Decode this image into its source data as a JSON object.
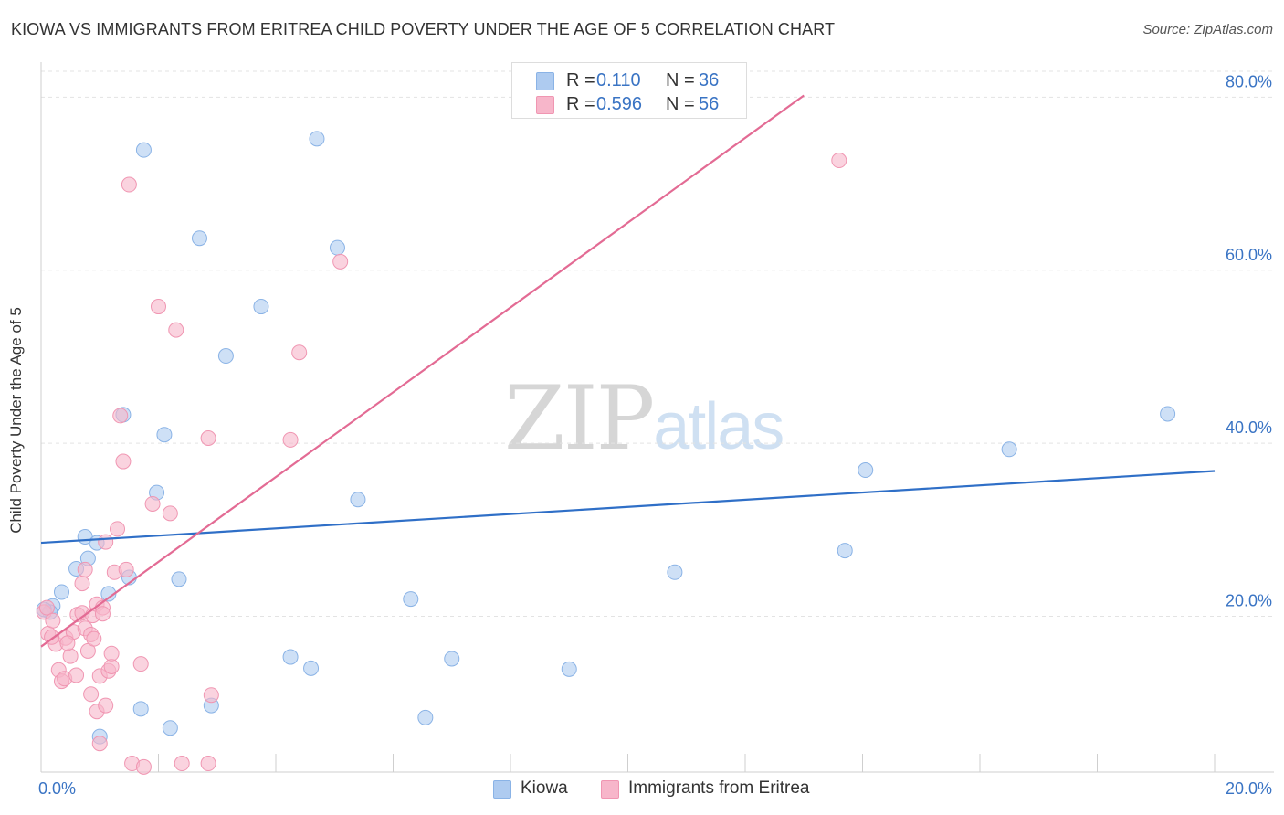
{
  "header": {
    "title": "KIOWA VS IMMIGRANTS FROM ERITREA CHILD POVERTY UNDER THE AGE OF 5 CORRELATION CHART",
    "source": "Source: ZipAtlas.com"
  },
  "watermark": {
    "zip": "ZIP",
    "atlas": "atlas"
  },
  "legend_top": {
    "rows": [
      {
        "r_label": "R = ",
        "r_value": "0.110",
        "n_label": "N = ",
        "n_value": "36",
        "color": "#aecbf0"
      },
      {
        "r_label": "R = ",
        "r_value": "0.596",
        "n_label": "N = ",
        "n_value": "56",
        "color": "#f7b6ca"
      }
    ]
  },
  "legend_bottom": {
    "items": [
      {
        "label": "Kiowa",
        "color": "#aecbf0"
      },
      {
        "label": "Immigrants from Eritrea",
        "color": "#f7b6ca"
      }
    ]
  },
  "chart_data": {
    "type": "scatter",
    "title": "KIOWA VS IMMIGRANTS FROM ERITREA CHILD POVERTY UNDER THE AGE OF 5 CORRELATION CHART",
    "xlabel": "",
    "ylabel": "Child Poverty Under the Age of 5",
    "xlim": [
      0,
      20
    ],
    "ylim": [
      2,
      83
    ],
    "x_tick_labels": [
      {
        "value": 0,
        "label": "0.0%"
      },
      {
        "value": 20,
        "label": "20.0%"
      }
    ],
    "y_tick_labels": [
      {
        "value": 20,
        "label": "20.0%"
      },
      {
        "value": 40,
        "label": "40.0%"
      },
      {
        "value": 60,
        "label": "60.0%"
      },
      {
        "value": 80,
        "label": "80.0%"
      }
    ],
    "series": [
      {
        "name": "Kiowa",
        "color": "#aecbf0",
        "stroke": "#8ab3e6",
        "trend": {
          "x": [
            0,
            20
          ],
          "y": [
            28.5,
            36.8
          ],
          "color": "#2f6fc7"
        },
        "points": [
          [
            0.2,
            21.2
          ],
          [
            0.35,
            22.8
          ],
          [
            0.6,
            25.5
          ],
          [
            0.8,
            26.7
          ],
          [
            0.75,
            29.2
          ],
          [
            0.95,
            28.5
          ],
          [
            1.15,
            22.6
          ],
          [
            1.5,
            24.5
          ],
          [
            1.4,
            43.3
          ],
          [
            1.7,
            9.3
          ],
          [
            1.75,
            73.9
          ],
          [
            1.97,
            34.3
          ],
          [
            2.1,
            41.0
          ],
          [
            2.2,
            7.1
          ],
          [
            2.35,
            24.3
          ],
          [
            2.7,
            63.7
          ],
          [
            2.9,
            9.7
          ],
          [
            3.15,
            50.1
          ],
          [
            3.75,
            55.8
          ],
          [
            4.25,
            15.3
          ],
          [
            4.6,
            14.0
          ],
          [
            4.7,
            75.2
          ],
          [
            5.05,
            62.6
          ],
          [
            5.4,
            33.5
          ],
          [
            6.3,
            22.0
          ],
          [
            6.55,
            8.3
          ],
          [
            7.0,
            15.1
          ],
          [
            9.0,
            13.9
          ],
          [
            1.0,
            6.1
          ],
          [
            10.8,
            25.1
          ],
          [
            13.7,
            27.6
          ],
          [
            14.05,
            36.9
          ],
          [
            16.5,
            39.3
          ],
          [
            19.2,
            43.4
          ],
          [
            0.15,
            20.5
          ],
          [
            0.05,
            20.8
          ]
        ]
      },
      {
        "name": "Immigrants from Eritrea",
        "color": "#f7b6ca",
        "stroke": "#f096b2",
        "trend": {
          "x": [
            0,
            13.0
          ],
          "y": [
            16.5,
            80.2
          ],
          "color": "#e36b94"
        },
        "points": [
          [
            0.05,
            20.5
          ],
          [
            0.1,
            21.0
          ],
          [
            0.12,
            18.0
          ],
          [
            0.2,
            19.5
          ],
          [
            0.25,
            16.8
          ],
          [
            0.3,
            13.8
          ],
          [
            0.35,
            12.5
          ],
          [
            0.4,
            12.8
          ],
          [
            0.42,
            17.5
          ],
          [
            0.5,
            15.4
          ],
          [
            0.55,
            18.2
          ],
          [
            0.6,
            13.2
          ],
          [
            0.62,
            20.2
          ],
          [
            0.7,
            20.4
          ],
          [
            0.7,
            23.8
          ],
          [
            0.75,
            18.6
          ],
          [
            0.8,
            16.0
          ],
          [
            0.75,
            25.4
          ],
          [
            0.85,
            17.9
          ],
          [
            0.85,
            11.0
          ],
          [
            0.9,
            17.4
          ],
          [
            0.88,
            20.1
          ],
          [
            0.95,
            21.4
          ],
          [
            0.95,
            9.0
          ],
          [
            1.0,
            13.1
          ],
          [
            1.0,
            5.3
          ],
          [
            1.05,
            21.0
          ],
          [
            1.05,
            20.3
          ],
          [
            1.1,
            28.6
          ],
          [
            1.1,
            9.7
          ],
          [
            1.15,
            13.7
          ],
          [
            1.2,
            14.2
          ],
          [
            1.2,
            15.7
          ],
          [
            1.25,
            25.1
          ],
          [
            1.3,
            30.1
          ],
          [
            1.35,
            43.2
          ],
          [
            1.4,
            37.9
          ],
          [
            1.45,
            25.4
          ],
          [
            1.5,
            69.9
          ],
          [
            1.55,
            3.0
          ],
          [
            1.7,
            14.5
          ],
          [
            1.75,
            2.6
          ],
          [
            1.9,
            33.0
          ],
          [
            2.0,
            55.8
          ],
          [
            2.2,
            31.9
          ],
          [
            2.3,
            53.1
          ],
          [
            2.4,
            3.0
          ],
          [
            2.85,
            40.6
          ],
          [
            2.85,
            3.0
          ],
          [
            2.9,
            10.9
          ],
          [
            4.25,
            40.4
          ],
          [
            4.4,
            50.5
          ],
          [
            5.1,
            61.0
          ],
          [
            13.6,
            72.7
          ],
          [
            0.18,
            17.6
          ],
          [
            0.45,
            16.9
          ]
        ]
      }
    ]
  }
}
